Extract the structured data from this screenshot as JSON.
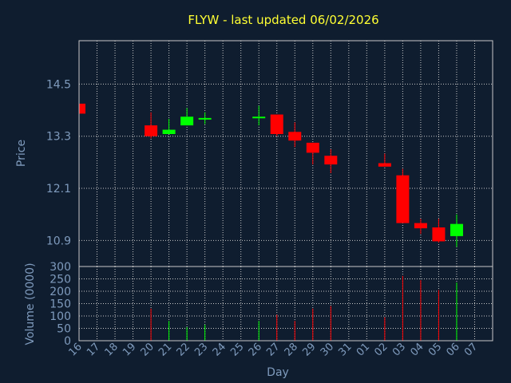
{
  "chart_data": {
    "type": "candlestick",
    "title": "FLYW - last updated 06/02/2026",
    "xlabel": "Day",
    "ylabel": "Price",
    "volume_label": "Volume (0000)",
    "price_ticks": [
      10.9,
      12.1,
      13.3,
      14.5
    ],
    "price_tick_labels": [
      "10.9",
      "12.1",
      "13.3",
      "14.5"
    ],
    "price_range": [
      10.3,
      15.5
    ],
    "volume_ticks": [
      0,
      50,
      100,
      150,
      200,
      250,
      300
    ],
    "volume_range": [
      0,
      300
    ],
    "days": [
      "16",
      "17",
      "18",
      "19",
      "20",
      "21",
      "22",
      "23",
      "24",
      "25",
      "26",
      "27",
      "28",
      "29",
      "30",
      "31",
      "01",
      "02",
      "03",
      "04",
      "05",
      "06",
      "07"
    ],
    "candles": [
      {
        "day": "16",
        "open": 14.05,
        "close": 13.82,
        "high": 14.05,
        "low": 13.82,
        "volume": 0
      },
      {
        "day": "20",
        "open": 13.55,
        "close": 13.3,
        "high": 13.85,
        "low": 13.25,
        "volume": 130
      },
      {
        "day": "21",
        "open": 13.35,
        "close": 13.45,
        "high": 13.7,
        "low": 13.35,
        "volume": 80
      },
      {
        "day": "22",
        "open": 13.55,
        "close": 13.75,
        "high": 13.95,
        "low": 13.55,
        "volume": 55
      },
      {
        "day": "23",
        "open": 13.69,
        "close": 13.72,
        "high": 13.85,
        "low": 13.58,
        "volume": 65
      },
      {
        "day": "26",
        "open": 13.72,
        "close": 13.75,
        "high": 14.0,
        "low": 13.55,
        "volume": 80
      },
      {
        "day": "27",
        "open": 13.8,
        "close": 13.35,
        "high": 13.8,
        "low": 13.3,
        "volume": 105
      },
      {
        "day": "28",
        "open": 13.4,
        "close": 13.2,
        "high": 13.62,
        "low": 13.05,
        "volume": 80
      },
      {
        "day": "29",
        "open": 13.15,
        "close": 12.92,
        "high": 13.15,
        "low": 12.65,
        "volume": 130
      },
      {
        "day": "30",
        "open": 12.85,
        "close": 12.65,
        "high": 13.0,
        "low": 12.45,
        "volume": 140
      },
      {
        "day": "02",
        "open": 12.68,
        "close": 12.6,
        "high": 12.9,
        "low": 12.6,
        "volume": 95
      },
      {
        "day": "03",
        "open": 12.4,
        "close": 11.3,
        "high": 12.55,
        "low": 11.3,
        "volume": 262
      },
      {
        "day": "04",
        "open": 11.3,
        "close": 11.18,
        "high": 11.4,
        "low": 11.05,
        "volume": 245
      },
      {
        "day": "05",
        "open": 11.2,
        "close": 10.88,
        "high": 11.4,
        "low": 10.85,
        "volume": 205
      },
      {
        "day": "06",
        "open": 11.0,
        "close": 11.28,
        "high": 11.5,
        "low": 10.75,
        "volume": 235
      }
    ],
    "grid": true,
    "legend": "none"
  },
  "colors": {
    "background": "#0f1d2f",
    "up": "#00ff00",
    "down": "#ff0000",
    "title": "#ffff33",
    "axis_text": "#7f9bbd",
    "frame": "#c8c8c8",
    "grid": "#c8c8c8"
  }
}
